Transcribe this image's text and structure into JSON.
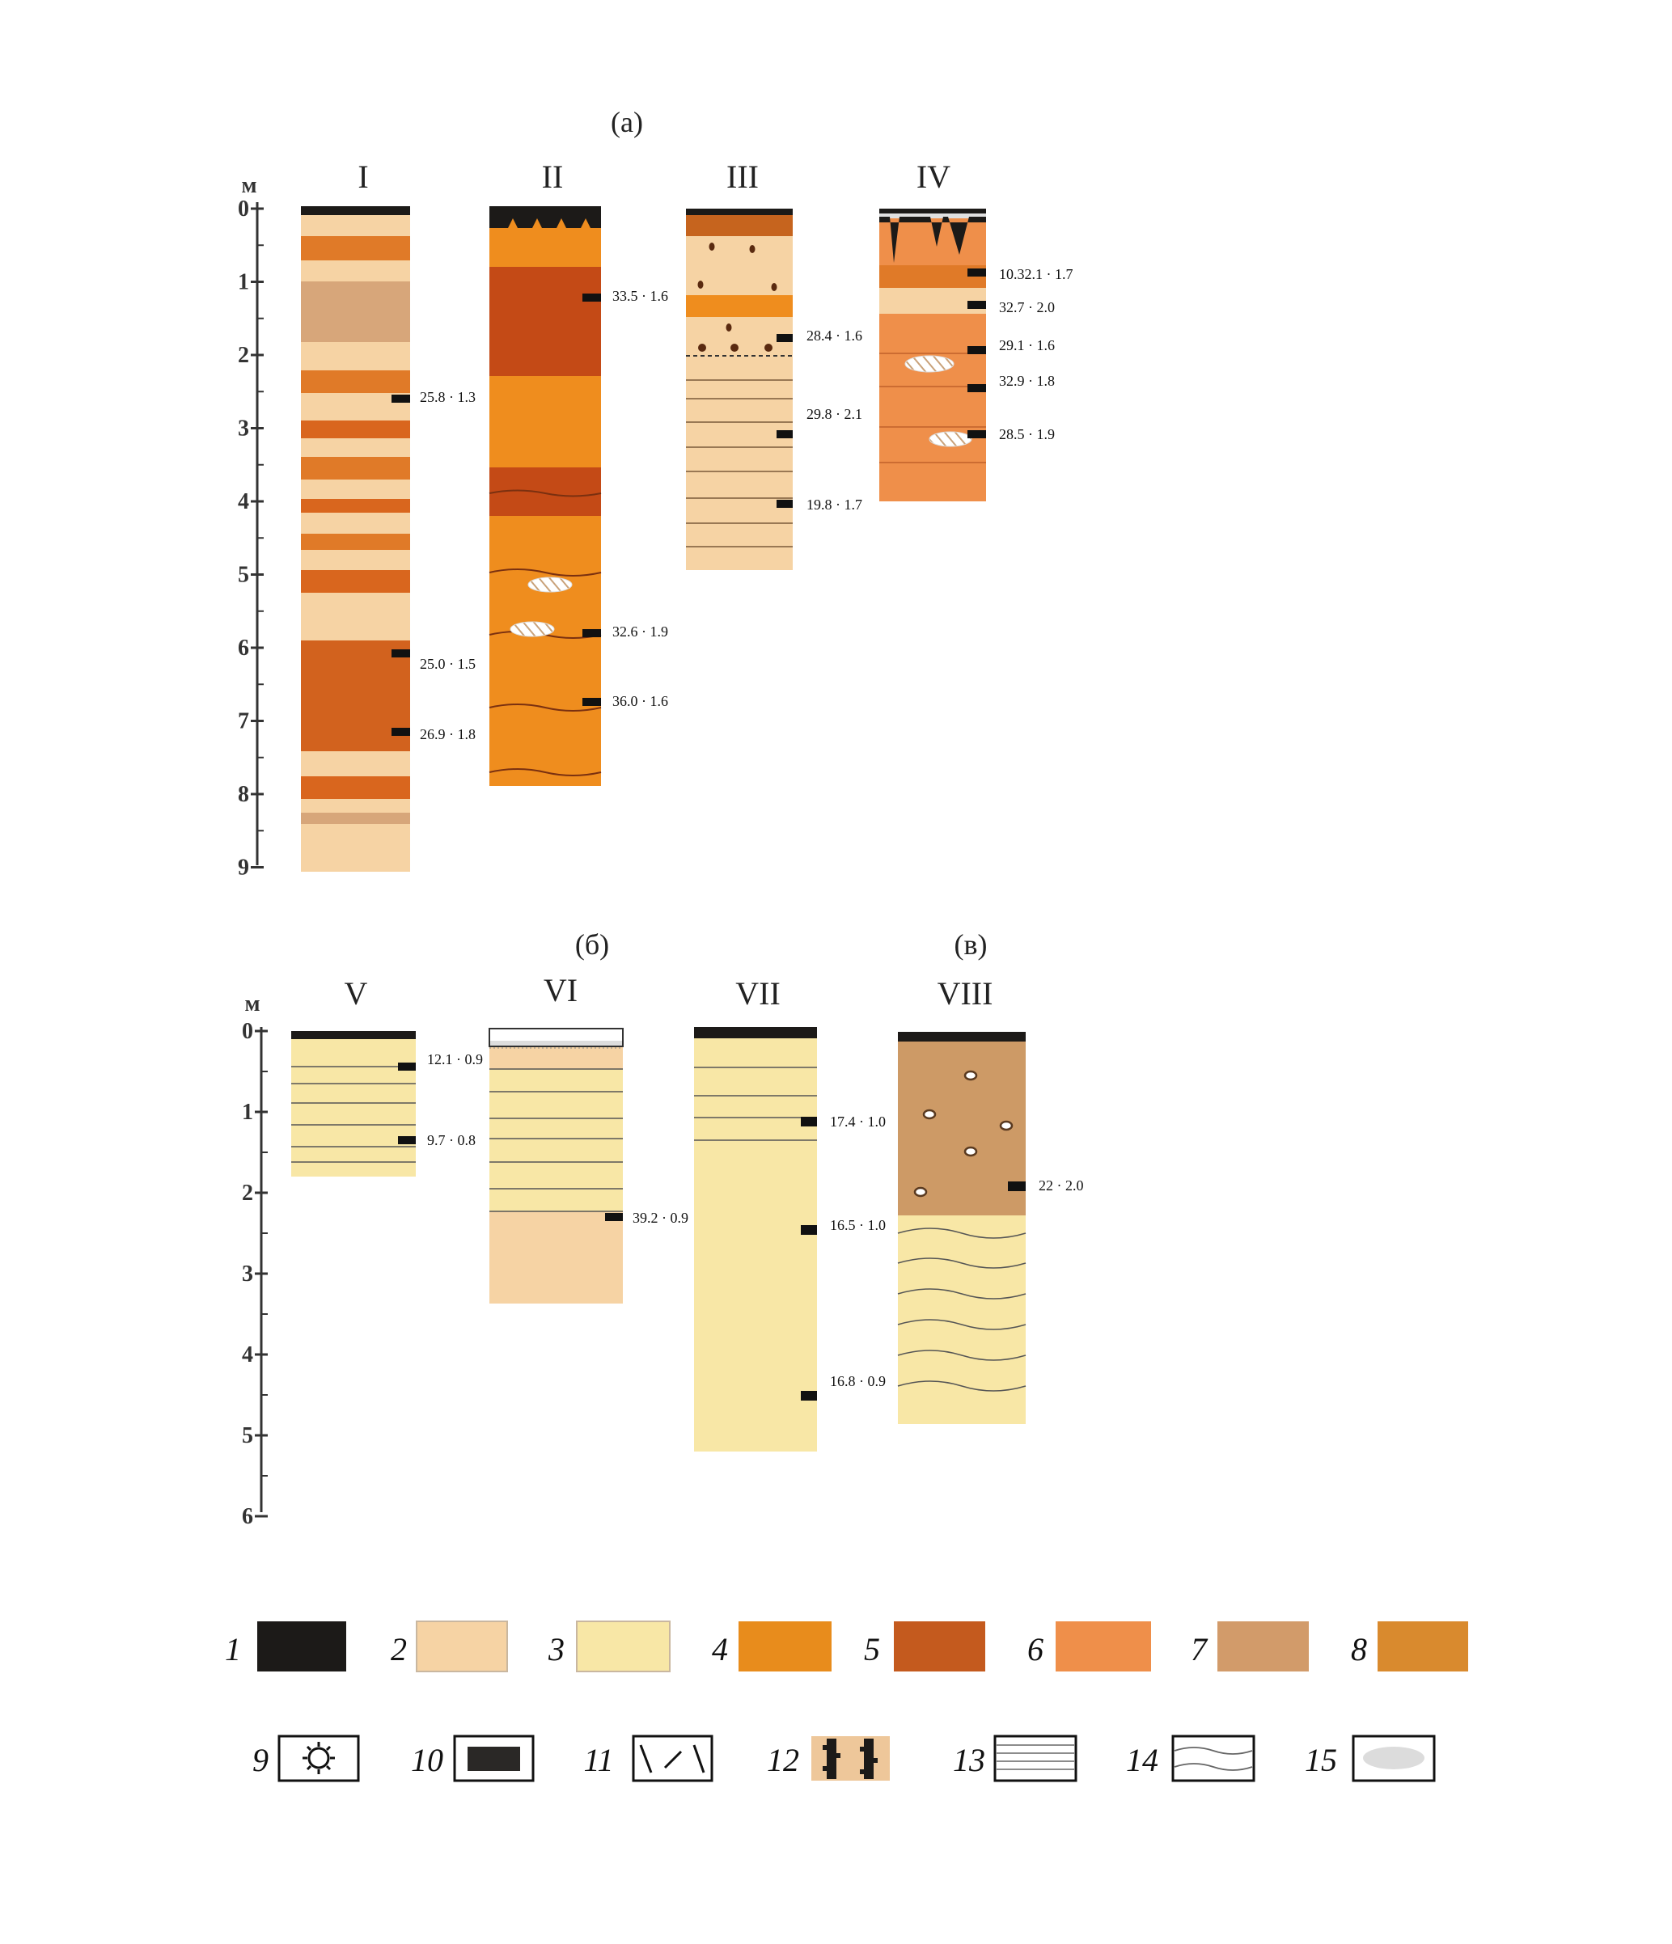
{
  "titles": {
    "a": "(а)",
    "b": "(б)",
    "v": "(в)"
  },
  "axis": {
    "unit": "м",
    "top_ticks": [
      "0",
      "1",
      "2",
      "3",
      "4",
      "5",
      "6",
      "7",
      "8",
      "9"
    ],
    "bottom_ticks": [
      "0",
      "1",
      "2",
      "3",
      "4",
      "5",
      "6"
    ]
  },
  "columns": [
    "I",
    "II",
    "III",
    "IV",
    "V",
    "VI",
    "VII",
    "VIII"
  ],
  "annotations": {
    "I": [
      "25.8 · 1.3",
      "25.0 · 1.5",
      "26.9 · 1.8"
    ],
    "II": [
      "33.5 · 1.6",
      "32.6 · 1.9",
      "36.0 · 1.6"
    ],
    "III": [
      "28.4 · 1.6",
      "29.8 · 2.1",
      "19.8 · 1.7"
    ],
    "IV": [
      "10.32.1 · 1.7",
      "32.7 · 2.0",
      "29.1 · 1.6",
      "32.9 · 1.8",
      "28.5 · 1.9"
    ],
    "V": [
      "12.1 · 0.9",
      "9.7 · 0.8"
    ],
    "VI": [
      "39.2 · 0.9"
    ],
    "VII": [
      "17.4 · 1.0",
      "16.5 · 1.0",
      "16.8 · 0.9"
    ],
    "VIII": [
      "22 · 2.0"
    ]
  },
  "legend": [
    "1",
    "2",
    "3",
    "4",
    "5",
    "6",
    "7",
    "8",
    "9",
    "10",
    "11",
    "12",
    "13",
    "14",
    "15"
  ],
  "colors": {
    "black": "#1c1a18",
    "light_buff": "#f6d3a4",
    "pale_yellow": "#f8e7a6",
    "orange": "#e88c1c",
    "rust": "#c45a1e",
    "light_orange": "#ef8f4a",
    "tan": "#d29b6a",
    "ochre": "#d98a2e"
  }
}
